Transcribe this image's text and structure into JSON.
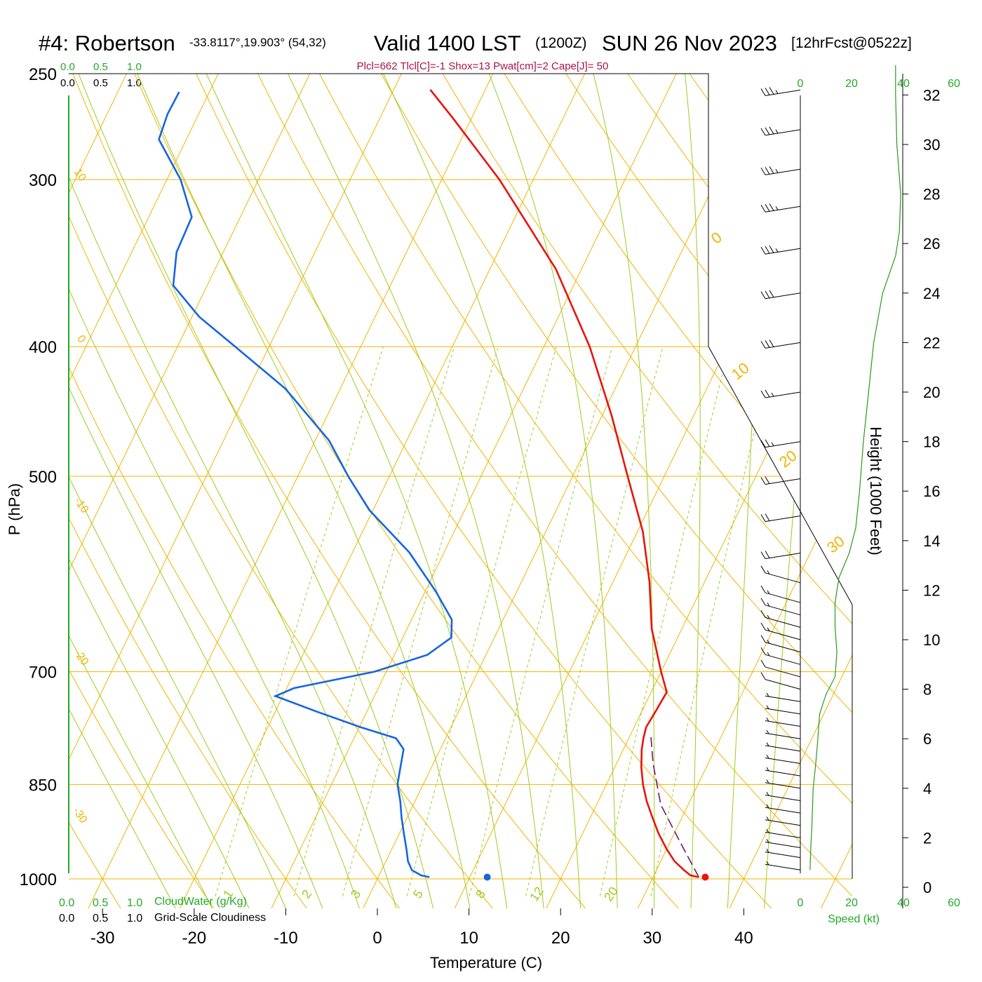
{
  "header": {
    "station": "#4: Robertson",
    "coords": "-33.8117°,19.903° (54,32)",
    "valid": "Valid 1400 LST",
    "utc": "(1200Z)",
    "date": "SUN 26 Nov 2023",
    "forecast": "[12hrFcst@0522z]",
    "indices": "Plcl=662 Tlcl[C]=-1 Shox=13 Pwat[cm]=2 Cape[J]= 50"
  },
  "colors": {
    "temperature": "#e8140c",
    "dewpoint": "#1566e0",
    "isobar_isotherm": "#f0b400",
    "dry_adiabat": "#f0b400",
    "moist_adiabat": "#9ccc20",
    "mixing_ratio": "#9ccc20",
    "parcel": "#6a1670",
    "wind_speed": "#2a9a1a",
    "scale_green": "#22aa22",
    "indices_text": "#a8124a",
    "barbs": "#000000"
  },
  "chart_data": {
    "type": "skew-t",
    "xlabel": "Temperature (C)",
    "ylabel": "P (hPa)",
    "height_label": "Height (1000 Feet)",
    "x_ticks": [
      "-30",
      "-20",
      "-10",
      "0",
      "10",
      "20",
      "30",
      "40"
    ],
    "p_ticks": [
      "250",
      "300",
      "400",
      "500",
      "700",
      "850",
      "1000"
    ],
    "height_ticks": [
      "0",
      "2",
      "4",
      "6",
      "8",
      "10",
      "12",
      "14",
      "16",
      "18",
      "20",
      "22",
      "24",
      "26",
      "28",
      "30",
      "32"
    ],
    "top_scale_green": [
      "0.0",
      "0.5",
      "1.0"
    ],
    "top_scale_black": [
      "0.0",
      "0.5",
      "1.0"
    ],
    "bottom_scale_green": [
      "0.0",
      "0.5",
      "1.0"
    ],
    "bottom_scale_black": [
      "0.0",
      "0.5",
      "1.0"
    ],
    "cloudwater_label": "CloudWater (g/Kg)",
    "cloudiness_label": "Grid-Scale Cloudiness",
    "speed_ticks": [
      "0",
      "20",
      "40",
      "60"
    ],
    "speed_label": "Speed (kt)",
    "isotherm_labels": [
      "10",
      "0",
      "-10",
      "-20",
      "-30"
    ],
    "dry_adiabat_labels": [
      "0",
      "10",
      "20",
      "30"
    ],
    "mixing_ratio_labels": [
      "1",
      "2",
      "3",
      "5",
      "8",
      "12",
      "20"
    ],
    "temperature_profile": [
      {
        "p": 997,
        "t": 35.0
      },
      {
        "p": 994,
        "t": 34.0
      },
      {
        "p": 985,
        "t": 33.0
      },
      {
        "p": 970,
        "t": 31.5
      },
      {
        "p": 950,
        "t": 30.0
      },
      {
        "p": 925,
        "t": 28.3
      },
      {
        "p": 900,
        "t": 26.8
      },
      {
        "p": 875,
        "t": 25.3
      },
      {
        "p": 850,
        "t": 24.0
      },
      {
        "p": 825,
        "t": 22.9
      },
      {
        "p": 800,
        "t": 22.0
      },
      {
        "p": 785,
        "t": 21.6
      },
      {
        "p": 770,
        "t": 21.3
      },
      {
        "p": 750,
        "t": 21.5
      },
      {
        "p": 725,
        "t": 21.7
      },
      {
        "p": 700,
        "t": 20.0
      },
      {
        "p": 650,
        "t": 16.7
      },
      {
        "p": 600,
        "t": 14.0
      },
      {
        "p": 550,
        "t": 10.6
      },
      {
        "p": 500,
        "t": 6.0
      },
      {
        "p": 450,
        "t": 1.0
      },
      {
        "p": 400,
        "t": -5.0
      },
      {
        "p": 350,
        "t": -12.8
      },
      {
        "p": 300,
        "t": -23.7
      },
      {
        "p": 270,
        "t": -32.0
      },
      {
        "p": 257,
        "t": -36.0
      }
    ],
    "dewpoint_profile": [
      {
        "p": 997,
        "t": 5.6
      },
      {
        "p": 994,
        "t": 4.6
      },
      {
        "p": 985,
        "t": 3.3
      },
      {
        "p": 970,
        "t": 2.4
      },
      {
        "p": 950,
        "t": 1.6
      },
      {
        "p": 925,
        "t": 0.5
      },
      {
        "p": 900,
        "t": -0.6
      },
      {
        "p": 875,
        "t": -1.6
      },
      {
        "p": 850,
        "t": -2.8
      },
      {
        "p": 825,
        "t": -3.4
      },
      {
        "p": 800,
        "t": -4.0
      },
      {
        "p": 785,
        "t": -5.4
      },
      {
        "p": 770,
        "t": -9.9
      },
      {
        "p": 750,
        "t": -15.4
      },
      {
        "p": 730,
        "t": -20.8
      },
      {
        "p": 720,
        "t": -19.2
      },
      {
        "p": 700,
        "t": -11.3
      },
      {
        "p": 680,
        "t": -6.4
      },
      {
        "p": 660,
        "t": -4.7
      },
      {
        "p": 640,
        "t": -5.6
      },
      {
        "p": 610,
        "t": -8.8
      },
      {
        "p": 570,
        "t": -13.8
      },
      {
        "p": 530,
        "t": -20.4
      },
      {
        "p": 500,
        "t": -24.5
      },
      {
        "p": 470,
        "t": -28.5
      },
      {
        "p": 430,
        "t": -36.0
      },
      {
        "p": 400,
        "t": -43.7
      },
      {
        "p": 380,
        "t": -49.2
      },
      {
        "p": 360,
        "t": -53.7
      },
      {
        "p": 340,
        "t": -55.1
      },
      {
        "p": 320,
        "t": -55.3
      },
      {
        "p": 300,
        "t": -58.5
      },
      {
        "p": 280,
        "t": -63.0
      },
      {
        "p": 268,
        "t": -63.4
      },
      {
        "p": 258,
        "t": -63.3
      }
    ],
    "parcel_profile": [
      {
        "p": 997,
        "t": 35.0
      },
      {
        "p": 940,
        "t": 31.2
      },
      {
        "p": 880,
        "t": 27.0
      },
      {
        "p": 820,
        "t": 24.0
      },
      {
        "p": 780,
        "t": 22.2
      }
    ],
    "surface_temperature": {
      "p": 997,
      "t": 35.7
    },
    "surface_dewpoint": {
      "p": 997,
      "t": 11.9
    },
    "wind_speed_profile": [
      {
        "h": 0.7,
        "s": 3.8
      },
      {
        "h": 1.5,
        "s": 4.0
      },
      {
        "h": 2.5,
        "s": 4.5
      },
      {
        "h": 4.0,
        "s": 5.0
      },
      {
        "h": 5.0,
        "s": 6.0
      },
      {
        "h": 6.0,
        "s": 6.8
      },
      {
        "h": 7.0,
        "s": 7.5
      },
      {
        "h": 7.8,
        "s": 10.0
      },
      {
        "h": 8.5,
        "s": 13.5
      },
      {
        "h": 9.5,
        "s": 14.2
      },
      {
        "h": 10.5,
        "s": 13.5
      },
      {
        "h": 11.5,
        "s": 13.5
      },
      {
        "h": 12.5,
        "s": 15.0
      },
      {
        "h": 13.5,
        "s": 19.0
      },
      {
        "h": 14.5,
        "s": 21.5
      },
      {
        "h": 16,
        "s": 23.0
      },
      {
        "h": 18,
        "s": 24.5
      },
      {
        "h": 20,
        "s": 26.5
      },
      {
        "h": 22,
        "s": 28.5
      },
      {
        "h": 24,
        "s": 32.0
      },
      {
        "h": 25.5,
        "s": 37.0
      },
      {
        "h": 26.5,
        "s": 38.5
      },
      {
        "h": 28,
        "s": 39.0
      },
      {
        "h": 30,
        "s": 37.5
      },
      {
        "h": 32,
        "s": 37.0
      },
      {
        "h": 33.2,
        "s": 37.0
      }
    ],
    "wind_barbs": [
      {
        "h": 0.7,
        "spd": 5
      },
      {
        "h": 1.2,
        "spd": 5
      },
      {
        "h": 1.6,
        "spd": 5
      },
      {
        "h": 2.0,
        "spd": 5
      },
      {
        "h": 2.5,
        "spd": 5
      },
      {
        "h": 3.0,
        "spd": 5
      },
      {
        "h": 3.5,
        "spd": 5
      },
      {
        "h": 4.0,
        "spd": 5
      },
      {
        "h": 4.5,
        "spd": 5
      },
      {
        "h": 5.0,
        "spd": 5
      },
      {
        "h": 5.5,
        "spd": 5
      },
      {
        "h": 6.0,
        "spd": 5
      },
      {
        "h": 6.5,
        "spd": 5
      },
      {
        "h": 7.0,
        "spd": 5
      },
      {
        "h": 7.5,
        "spd": 5
      },
      {
        "h": 8.0,
        "spd": 10
      },
      {
        "h": 8.5,
        "spd": 10
      },
      {
        "h": 9.0,
        "spd": 15
      },
      {
        "h": 9.5,
        "spd": 15
      },
      {
        "h": 10.0,
        "spd": 15
      },
      {
        "h": 10.5,
        "spd": 15
      },
      {
        "h": 11.0,
        "spd": 15
      },
      {
        "h": 11.5,
        "spd": 15
      },
      {
        "h": 12.3,
        "spd": 15
      },
      {
        "h": 13.5,
        "spd": 20
      },
      {
        "h": 15.0,
        "spd": 20
      },
      {
        "h": 16.5,
        "spd": 20
      },
      {
        "h": 18.0,
        "spd": 25
      },
      {
        "h": 20.0,
        "spd": 25
      },
      {
        "h": 22.0,
        "spd": 30
      },
      {
        "h": 24.0,
        "spd": 30
      },
      {
        "h": 25.8,
        "spd": 35
      },
      {
        "h": 27.5,
        "spd": 35
      },
      {
        "h": 29.0,
        "spd": 35
      },
      {
        "h": 30.6,
        "spd": 35
      },
      {
        "h": 32.2,
        "spd": 35
      }
    ]
  }
}
